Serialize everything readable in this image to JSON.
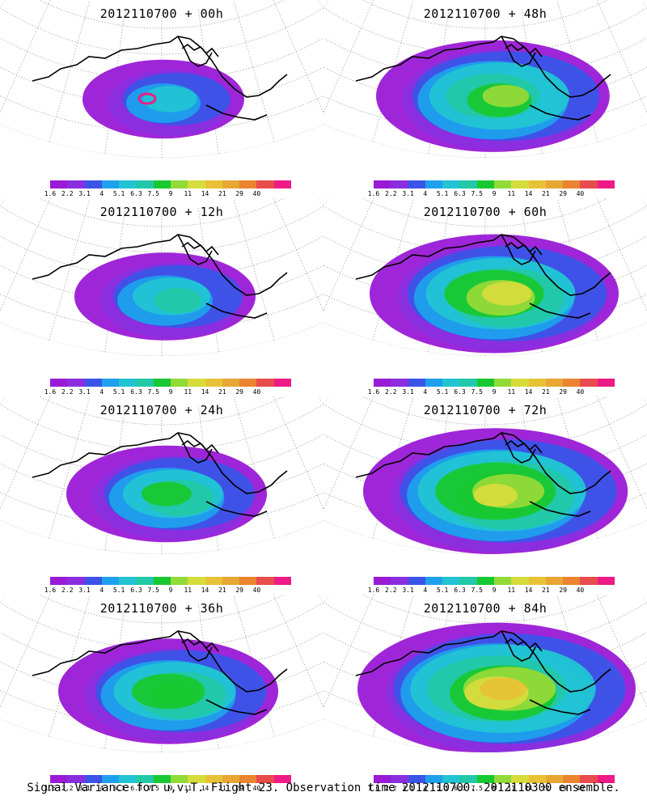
{
  "figure": {
    "caption": "Signal Variance for u,v,T. Flight 23. Observation time 2012110700. 2012110300 ensemble."
  },
  "colorbar": {
    "colors": [
      "#9a1ad6",
      "#8a2ee0",
      "#3b54e8",
      "#1fa0ec",
      "#22c4d4",
      "#22c8a8",
      "#18c830",
      "#92da38",
      "#d6dc3c",
      "#e8c236",
      "#e8a634",
      "#ea8430",
      "#e84c4c",
      "#ee1b86"
    ],
    "tick_labels": [
      "1.6",
      "2.2",
      "3.1",
      "4",
      "5.1",
      "6.3",
      "7.5",
      "9",
      "11",
      "14",
      "21",
      "29",
      "40"
    ]
  },
  "panels": [
    {
      "title": "2012110700 + 00h",
      "intensity": 0.25
    },
    {
      "title": "2012110700 + 48h",
      "intensity": 0.62
    },
    {
      "title": "2012110700 + 12h",
      "intensity": 0.35
    },
    {
      "title": "2012110700 + 60h",
      "intensity": 0.7
    },
    {
      "title": "2012110700 + 24h",
      "intensity": 0.45
    },
    {
      "title": "2012110700 + 72h",
      "intensity": 0.78
    },
    {
      "title": "2012110700 + 36h",
      "intensity": 0.55
    },
    {
      "title": "2012110700 + 84h",
      "intensity": 0.85
    }
  ]
}
